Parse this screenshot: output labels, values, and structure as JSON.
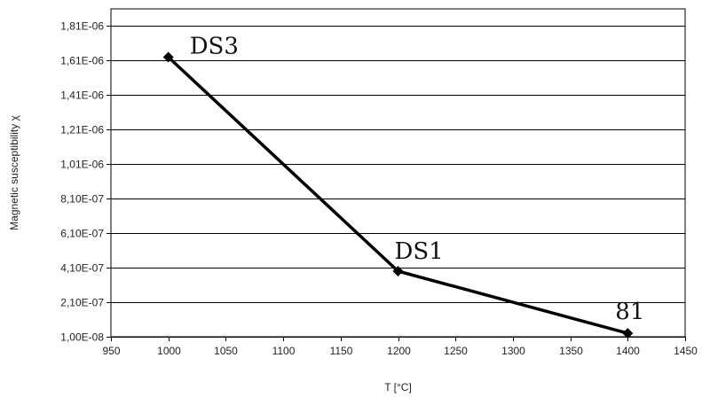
{
  "chart_data": {
    "type": "line",
    "title": "",
    "xlabel": "T [°C]",
    "ylabel": "Magnetic susceptibility χ",
    "xlim": [
      950,
      1450
    ],
    "ylim": [
      1e-08,
      1.91e-06
    ],
    "grid": "horizontal",
    "legend": "none",
    "x_ticks": [
      950,
      1000,
      1050,
      1100,
      1150,
      1200,
      1250,
      1300,
      1350,
      1400,
      1450
    ],
    "x_tick_labels": [
      "950",
      "1000",
      "1050",
      "1100",
      "1150",
      "1200",
      "1250",
      "1300",
      "1350",
      "1400",
      "1450"
    ],
    "y_ticks": [
      1e-08,
      2.1e-07,
      4.1e-07,
      6.1e-07,
      8.1e-07,
      1.01e-06,
      1.21e-06,
      1.41e-06,
      1.61e-06,
      1.81e-06
    ],
    "y_tick_labels": [
      "1,00E-08",
      "2,10E-07",
      "4,10E-07",
      "6,10E-07",
      "8,10E-07",
      "1,01E-06",
      "1,21E-06",
      "1,41E-06",
      "1,61E-06",
      "1,81E-06"
    ],
    "series": [
      {
        "x": [
          1000,
          1200,
          1400
        ],
        "y": [
          1.63e-06,
          3.9e-07,
          3e-08
        ],
        "point_labels": [
          "DS3",
          "DS1",
          "81"
        ],
        "color": "#000000",
        "marker": "diamond"
      }
    ]
  }
}
